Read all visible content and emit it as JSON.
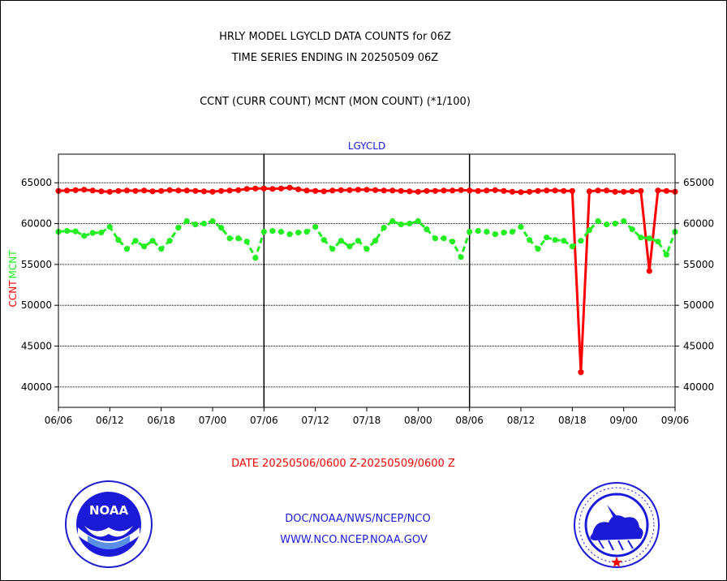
{
  "title_line1": "HRLY MODEL LGYCLD DATA COUNTS for 06Z",
  "title_line2": "TIME SERIES ENDING IN 20250509 06Z",
  "subtitle": "CCNT (CURR COUNT) MCNT (MON COUNT) (*1/100)",
  "date_range": "DATE 20250506/0600 Z-20250509/0600 Z",
  "credit_line1": "DOC/NOAA/NWS/NCEP/NCO",
  "credit_line2": "WWW.NCO.NCEP.NOAA.GOV",
  "logos": {
    "left": "noaa-logo",
    "right": "nws-logo",
    "noaa_text": "NOAA"
  },
  "colors": {
    "ccnt": "#ff0000",
    "mcnt": "#22ee22",
    "plot_title": "#1a1ad8",
    "credits": "#1a1ad8"
  },
  "chart_data": {
    "type": "line",
    "title": "LGYCLD",
    "ylabel_parts": [
      "CCNT",
      "MCNT"
    ],
    "xlabel": "",
    "ylim": [
      37500,
      68500
    ],
    "yticks": [
      40000,
      45000,
      50000,
      55000,
      60000,
      65000
    ],
    "ytick_labels": [
      "40000",
      "45000",
      "50000",
      "55000",
      "60000",
      "65000"
    ],
    "xlim": [
      0,
      72
    ],
    "xtick_positions": [
      0,
      6,
      12,
      18,
      24,
      30,
      36,
      42,
      48,
      54,
      60,
      66,
      72
    ],
    "xtick_labels": [
      "06/06",
      "06/12",
      "06/18",
      "07/00",
      "07/06",
      "07/12",
      "07/18",
      "08/00",
      "08/06",
      "08/12",
      "08/18",
      "09/00",
      "09/06"
    ],
    "day_dividers": [
      24,
      48
    ],
    "grid": "horizontal",
    "series": [
      {
        "name": "CCNT",
        "color": "#ff0000",
        "x": [
          0,
          1,
          2,
          3,
          4,
          5,
          6,
          7,
          8,
          9,
          10,
          11,
          12,
          13,
          14,
          15,
          16,
          17,
          18,
          19,
          20,
          21,
          22,
          23,
          24,
          25,
          26,
          27,
          28,
          29,
          30,
          31,
          32,
          33,
          34,
          35,
          36,
          37,
          38,
          39,
          40,
          41,
          42,
          43,
          44,
          45,
          46,
          47,
          48,
          49,
          50,
          51,
          52,
          53,
          54,
          55,
          56,
          57,
          58,
          59,
          60,
          61,
          62,
          63,
          64,
          65,
          66,
          67,
          68,
          69,
          70,
          71,
          72
        ],
        "values": [
          64000,
          64050,
          64100,
          64150,
          64050,
          63950,
          63900,
          64000,
          64050,
          64000,
          64050,
          63950,
          64000,
          64100,
          64050,
          64050,
          64000,
          63950,
          63900,
          64000,
          64050,
          64100,
          64250,
          64300,
          64300,
          64250,
          64300,
          64400,
          64200,
          64050,
          64000,
          63950,
          64050,
          64100,
          64100,
          64150,
          64150,
          64100,
          64050,
          64050,
          64000,
          63950,
          63900,
          64000,
          64000,
          64050,
          64050,
          64100,
          64050,
          64000,
          64050,
          64100,
          64000,
          63900,
          63850,
          63900,
          64000,
          64050,
          64050,
          64000,
          64000,
          41800,
          63950,
          64050,
          64050,
          63900,
          63900,
          63950,
          64000,
          54200,
          64050,
          64000,
          63900
        ]
      },
      {
        "name": "MCNT",
        "color": "#22ee22",
        "x": [
          0,
          1,
          2,
          3,
          4,
          5,
          6,
          7,
          8,
          9,
          10,
          11,
          12,
          13,
          14,
          15,
          16,
          17,
          18,
          19,
          20,
          21,
          22,
          23,
          24,
          25,
          26,
          27,
          28,
          29,
          30,
          31,
          32,
          33,
          34,
          35,
          36,
          37,
          38,
          39,
          40,
          41,
          42,
          43,
          44,
          45,
          46,
          47,
          48,
          49,
          50,
          51,
          52,
          53,
          54,
          55,
          56,
          57,
          58,
          59,
          60,
          61,
          62,
          63,
          64,
          65,
          66,
          67,
          68,
          69,
          70,
          71,
          72
        ],
        "values": [
          59000,
          59100,
          59050,
          58500,
          58850,
          58900,
          59600,
          58000,
          56900,
          57900,
          57200,
          57900,
          56900,
          57900,
          59500,
          60300,
          59900,
          60000,
          60300,
          59500,
          58200,
          58200,
          57800,
          55800,
          59000,
          59100,
          59000,
          58700,
          58900,
          59000,
          59600,
          58000,
          56900,
          57900,
          57200,
          57900,
          56900,
          57900,
          59500,
          60300,
          59900,
          60000,
          60300,
          59300,
          58200,
          58200,
          57800,
          55900,
          59000,
          59100,
          59000,
          58700,
          58900,
          59000,
          59600,
          58000,
          56900,
          58300,
          58000,
          57900,
          57200,
          57900,
          59200,
          60300,
          59900,
          60000,
          60300,
          59300,
          58300,
          58200,
          57800,
          56200,
          59000
        ]
      }
    ]
  }
}
